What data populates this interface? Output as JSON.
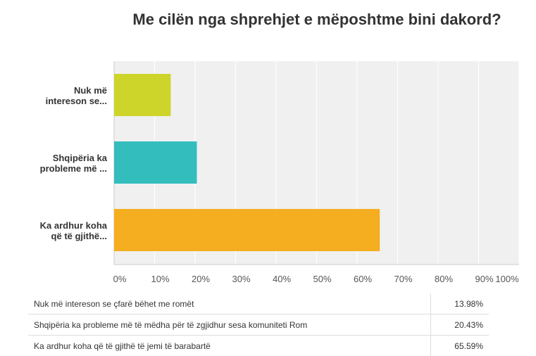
{
  "chart_data": {
    "type": "bar",
    "orientation": "horizontal",
    "title": "Me cilën nga shprehjet e mëposhtme bini dakord?",
    "categories": [
      "Nuk më intereson se...",
      "Shqipëria ka probleme më ...",
      "Ka ardhur koha që të gjithë..."
    ],
    "full_labels": [
      "Nuk më intereson se çfarë bëhet me romët",
      "Shqipëria ka probleme më të mëdha për të zgjidhur sesa komuniteti Rom",
      "Ka ardhur koha që të gjithë të jemi të barabartë"
    ],
    "values": [
      13.98,
      20.43,
      65.59
    ],
    "value_labels": [
      "13.98%",
      "20.43%",
      "65.59%"
    ],
    "colors": [
      "#cdd42a",
      "#33bdbd",
      "#f5ae20"
    ],
    "xlim": [
      0,
      100
    ],
    "ticks": [
      "0%",
      "10%",
      "20%",
      "30%",
      "40%",
      "50%",
      "60%",
      "70%",
      "80%",
      "90%",
      "100%"
    ],
    "grid": true
  }
}
